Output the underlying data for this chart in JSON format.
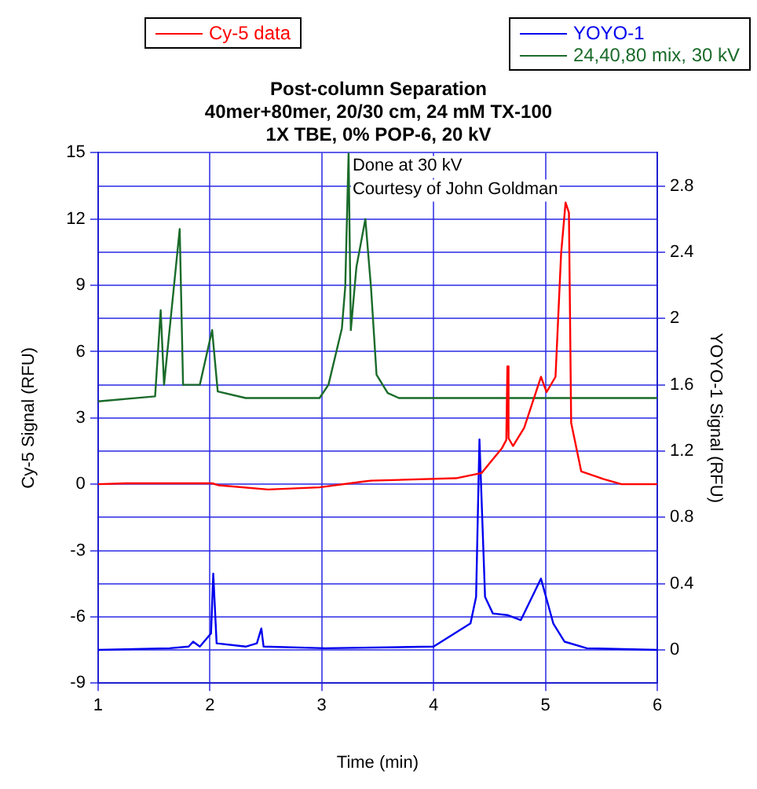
{
  "chart_data": {
    "type": "line",
    "title": "Post-column Separation",
    "subtitle": "40mer+80mer, 20/30 cm, 24 mM TX-100\n1X TBE, 0% POP-6, 20 kV",
    "xlabel": "Time (min)",
    "ylabel": "Cy-5 Signal (RFU)",
    "y2label": "YOYO-1 Signal (RFU)",
    "annotations": [
      "Done at 30 kV",
      "Courtesy of John Goldman"
    ],
    "xlim": [
      1,
      6
    ],
    "xticks": [
      1,
      2,
      3,
      4,
      5,
      6
    ],
    "ylim": [
      -9,
      15
    ],
    "yticks": [
      -9,
      -6,
      -3,
      0,
      3,
      6,
      9,
      12,
      15
    ],
    "y2lim": [
      -0.2,
      3.0
    ],
    "y2ticks": [
      0,
      0.4,
      0.8,
      1.2,
      1.6,
      2,
      2.4,
      2.8
    ],
    "grid": true,
    "legend": "top",
    "marker": "none",
    "line_style": "solid",
    "series": [
      {
        "name": "Cy-5 data",
        "color": "#ff0000",
        "x": [
          1.0,
          1.25,
          2.02,
          2.08,
          2.52,
          2.98,
          3.36,
          3.44,
          4.2,
          4.43,
          4.61,
          4.65,
          4.66,
          4.67,
          4.71,
          4.81,
          4.96,
          5.01,
          5.09,
          5.14,
          5.18,
          5.21,
          5.23,
          5.32,
          5.52,
          5.68,
          6.0
        ],
        "values": [
          0,
          0.04,
          0.04,
          -0.05,
          -0.24,
          -0.14,
          0.11,
          0.16,
          0.27,
          0.51,
          1.62,
          2.0,
          5.33,
          2.08,
          1.73,
          2.55,
          4.86,
          4.17,
          4.86,
          10.43,
          12.75,
          12.29,
          2.78,
          0.58,
          0.23,
          0,
          0
        ]
      },
      {
        "name": "YOYO-1",
        "color": "#0000ee",
        "axis": "y2",
        "x": [
          1.0,
          1.64,
          1.81,
          1.85,
          1.91,
          2.01,
          2.03,
          2.06,
          2.32,
          2.42,
          2.46,
          2.48,
          3.03,
          4.0,
          4.33,
          4.38,
          4.41,
          4.46,
          4.53,
          4.66,
          4.78,
          4.96,
          5.07,
          5.17,
          5.37,
          6.0
        ],
        "values": [
          0,
          0.01,
          0.02,
          0.05,
          0.02,
          0.1,
          0.46,
          0.04,
          0.02,
          0.04,
          0.13,
          0.02,
          0.01,
          0.02,
          0.16,
          0.32,
          1.27,
          0.32,
          0.22,
          0.21,
          0.18,
          0.43,
          0.16,
          0.05,
          0.01,
          0
        ]
      },
      {
        "name": "24,40,80 mix, 30 kV",
        "color": "#1a6b2a",
        "axis": "y2",
        "x": [
          1.0,
          1.51,
          1.56,
          1.59,
          1.73,
          1.76,
          1.91,
          2.02,
          2.07,
          2.32,
          2.98,
          3.06,
          3.18,
          3.21,
          3.24,
          3.26,
          3.31,
          3.39,
          3.44,
          3.49,
          3.59,
          3.69,
          6.0
        ],
        "values": [
          1.5,
          1.53,
          2.05,
          1.6,
          2.54,
          1.6,
          1.6,
          1.93,
          1.56,
          1.52,
          1.52,
          1.6,
          1.94,
          2.19,
          3.0,
          1.93,
          2.31,
          2.6,
          2.19,
          1.66,
          1.55,
          1.52,
          1.52
        ]
      }
    ]
  }
}
